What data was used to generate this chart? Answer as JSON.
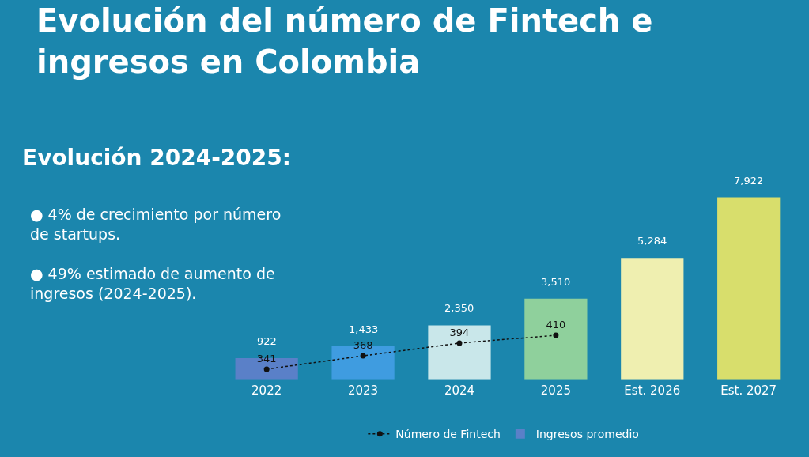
{
  "chart_data": {
    "type": "bar",
    "title": "Evolución del número de Fintech e ingresos en Colombia",
    "subtitle": "Evolución 2024-2025:",
    "annotations": [
      "●    4% de crecimiento por número de startups.",
      "●    49% estimado de aumento de ingresos (2024-2025)."
    ],
    "categories": [
      "2022",
      "2023",
      "2024",
      "2025",
      "Est. 2026",
      "Est. 2027"
    ],
    "series": [
      {
        "name": "Número de Fintech",
        "type": "line",
        "axis": "y2",
        "color": "#111111",
        "marker": "circle",
        "line_style": "dotted",
        "values": [
          341,
          368,
          394,
          410,
          null,
          null
        ],
        "value_labels": [
          "341",
          "368",
          "394",
          "410",
          null,
          null
        ]
      },
      {
        "name": "Ingresos promedio",
        "colors": [
          "#5a80c8",
          "#3f9ce0",
          "#c9e7ea",
          "#8fd09c",
          "#efefb0",
          "#d8de6c"
        ],
        "values": [
          922,
          1433,
          2350,
          3510,
          5284,
          7922
        ],
        "value_labels": [
          "922",
          "1,433",
          "2,350",
          "3,510",
          "5,284",
          "7,922"
        ]
      }
    ],
    "legend": "bottom",
    "grid": false
  }
}
